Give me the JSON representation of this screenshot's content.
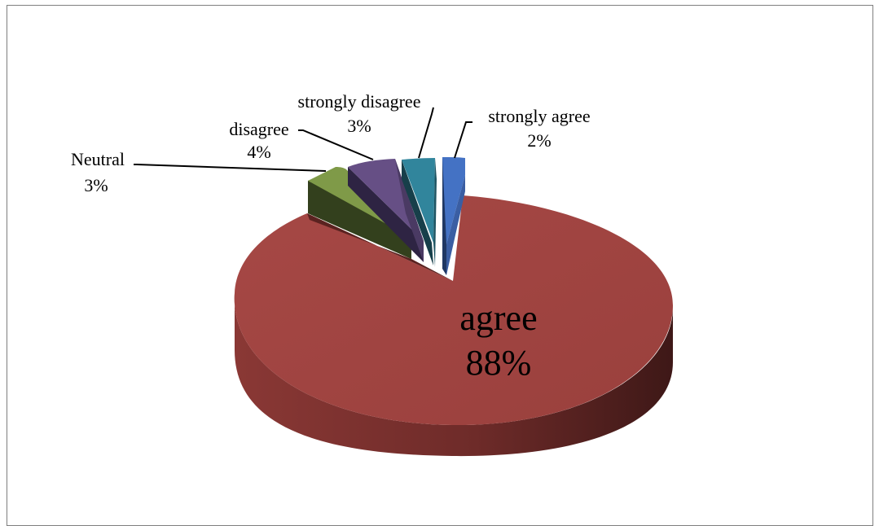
{
  "chart_data": {
    "type": "pie",
    "style": "3d-exploded",
    "slices": [
      {
        "label": "strongly agree",
        "percent_text": "2%",
        "value": 2,
        "color": "#4472c4"
      },
      {
        "label": "agree",
        "percent_text": "88%",
        "value": 88,
        "color": "#9b403d"
      },
      {
        "label": "Neutral",
        "percent_text": "3%",
        "value": 3,
        "color": "#7f9a48"
      },
      {
        "label": "disagree",
        "percent_text": "4%",
        "value": 4,
        "color": "#664f85"
      },
      {
        "label": "strongly disagree",
        "percent_text": "3%",
        "value": 3,
        "color": "#31859c"
      }
    ]
  }
}
